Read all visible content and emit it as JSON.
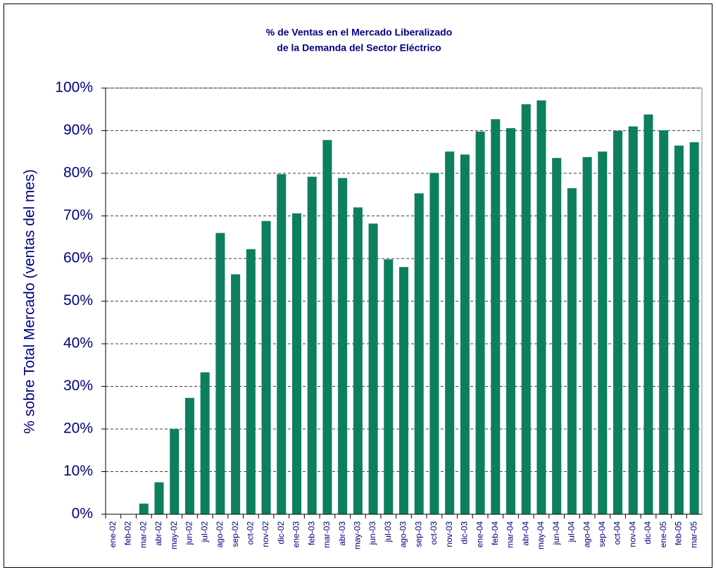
{
  "chart_data": {
    "type": "bar",
    "title": [
      "% de Ventas en el Mercado Liberalizado",
      "de la Demanda del Sector Eléctrico"
    ],
    "y_label": "% sobre Total Mercado (ventas del mes)",
    "categories": [
      "ene-02",
      "feb-02",
      "mar-02",
      "abr-02",
      "may-02",
      "jun-02",
      "jul-02",
      "ago-02",
      "sep-02",
      "oct-02",
      "nov-02",
      "dic-02",
      "ene-03",
      "feb-03",
      "mar-03",
      "abr-03",
      "may-03",
      "jun-03",
      "jul-03",
      "ago-03",
      "sep-03",
      "oct-03",
      "nov-03",
      "dic-03",
      "ene-04",
      "feb-04",
      "mar-04",
      "abr-04",
      "may-04",
      "jun-04",
      "jul-04",
      "ago-04",
      "sep-04",
      "oct-04",
      "nov-04",
      "dic-04",
      "ene-05",
      "feb-05",
      "mar-05"
    ],
    "values": [
      0,
      0,
      2.5,
      7.5,
      20,
      27.3,
      33.3,
      66,
      56.3,
      62.2,
      68.8,
      79.8,
      70.6,
      79.2,
      87.8,
      78.9,
      72,
      68.2,
      59.8,
      58,
      75.3,
      80.1,
      85.1,
      84.4,
      89.8,
      92.7,
      90.6,
      96.2,
      97.1,
      83.6,
      76.5,
      83.8,
      85.1,
      90,
      91,
      93.8,
      90.1,
      86.5,
      87.3
    ],
    "color": "#0d7f5e",
    "ylim": [
      0,
      100
    ],
    "yticks": [
      {
        "value": 0,
        "label": "0%"
      },
      {
        "value": 10,
        "label": "10%"
      },
      {
        "value": 20,
        "label": "20%"
      },
      {
        "value": 30,
        "label": "30%"
      },
      {
        "value": 40,
        "label": "40%"
      },
      {
        "value": 50,
        "label": "50%"
      },
      {
        "value": 60,
        "label": "60%"
      },
      {
        "value": 70,
        "label": "70%"
      },
      {
        "value": 80,
        "label": "80%"
      },
      {
        "value": 90,
        "label": "90%"
      },
      {
        "value": 100,
        "label": "100%"
      }
    ],
    "grid": true
  }
}
